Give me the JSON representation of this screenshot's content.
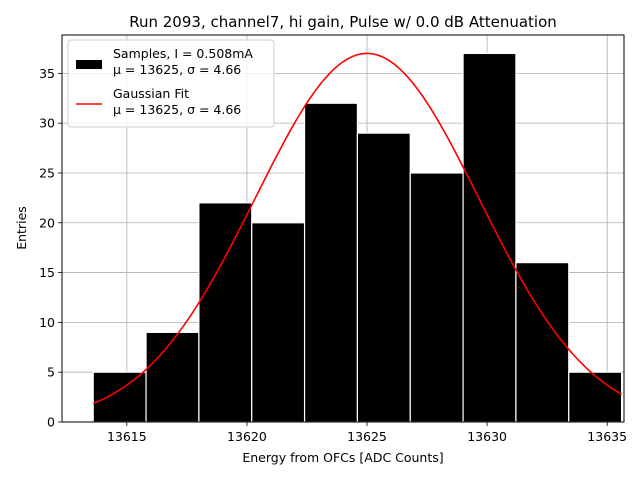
{
  "chart_data": {
    "type": "bar",
    "title": "Run 2093, channel7, hi gain, Pulse w/ 0.0 dB Attenuation",
    "xlabel": "Energy from OFCs [ADC Counts]",
    "ylabel": "Entries",
    "xlim": [
      13612.3,
      13635.7
    ],
    "ylim": [
      0,
      38.85
    ],
    "x_ticks": [
      13615,
      13620,
      13625,
      13630,
      13635
    ],
    "y_ticks": [
      0,
      5,
      10,
      15,
      20,
      25,
      30,
      35
    ],
    "grid": true,
    "legend_position": "top-left",
    "bin_edges": [
      13613.6,
      13615.8,
      13618.0,
      13620.2,
      13622.4,
      13624.6,
      13626.8,
      13629.0,
      13631.2,
      13633.4,
      13635.6
    ],
    "values": [
      5,
      9,
      22,
      20,
      32,
      29,
      25,
      37,
      16,
      5
    ],
    "fit": {
      "type": "gaussian",
      "mu": 13625,
      "sigma": 4.66,
      "amplitude": 37
    },
    "series": [
      {
        "name": "Samples, I = 0.508mA",
        "stats": "μ = 13625, σ = 4.66",
        "color": "#000000",
        "kind": "histogram"
      },
      {
        "name": "Gaussian Fit",
        "stats": "μ = 13625, σ = 4.66",
        "color": "#ff0000",
        "kind": "line"
      }
    ]
  }
}
